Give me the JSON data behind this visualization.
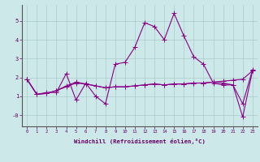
{
  "x": [
    0,
    1,
    2,
    3,
    4,
    5,
    6,
    7,
    8,
    9,
    10,
    11,
    12,
    13,
    14,
    15,
    16,
    17,
    18,
    19,
    20,
    21,
    22,
    23
  ],
  "line1": [
    1.9,
    1.1,
    1.2,
    1.2,
    2.2,
    0.8,
    1.7,
    1.0,
    0.6,
    2.7,
    2.8,
    3.6,
    4.9,
    4.7,
    4.0,
    5.4,
    4.2,
    3.1,
    2.7,
    1.7,
    1.6,
    1.6,
    0.6,
    2.4
  ],
  "line2": [
    1.9,
    1.1,
    1.15,
    1.3,
    1.5,
    1.7,
    1.65,
    1.55,
    1.45,
    1.5,
    1.5,
    1.55,
    1.6,
    1.65,
    1.6,
    1.65,
    1.65,
    1.7,
    1.7,
    1.75,
    1.8,
    1.85,
    1.9,
    2.35
  ],
  "line3": [
    1.9,
    1.1,
    1.15,
    1.3,
    1.55,
    1.75,
    1.65,
    1.55,
    1.45,
    1.5,
    1.5,
    1.55,
    1.6,
    1.65,
    1.6,
    1.65,
    1.65,
    1.7,
    1.7,
    1.75,
    1.7,
    1.6,
    -0.1,
    2.35
  ],
  "xlabel": "Windchill (Refroidissement éolien,°C)",
  "ylim": [
    -0.6,
    5.85
  ],
  "xlim": [
    -0.5,
    23.5
  ],
  "bg_color": "#cce8e8",
  "grid_color": "#aacccc",
  "line_color": "#880088",
  "markersize": 3,
  "linewidth": 0.8
}
